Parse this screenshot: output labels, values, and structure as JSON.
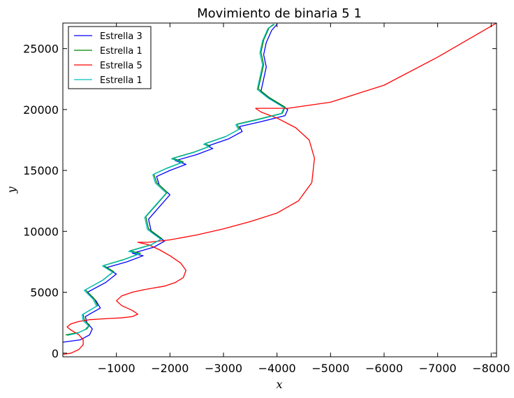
{
  "chart_data": {
    "type": "line",
    "title": "Movimiento de binaria 5 1",
    "xlabel": "x",
    "ylabel": "y",
    "xlim": [
      0,
      -8100
    ],
    "ylim": [
      -300,
      27100
    ],
    "x_ticks": [
      -1000,
      -2000,
      -3000,
      -4000,
      -5000,
      -6000,
      -7000,
      -8000
    ],
    "x_tick_labels": [
      "−1000",
      "−2000",
      "−3000",
      "−4000",
      "−5000",
      "−6000",
      "−7000",
      "−8000"
    ],
    "y_ticks": [
      0,
      5000,
      10000,
      15000,
      20000,
      25000
    ],
    "y_tick_labels": [
      "0",
      "5000",
      "10000",
      "15000",
      "20000",
      "25000"
    ],
    "legend_position": "upper-left",
    "series": [
      {
        "name": "Estrella 3",
        "color": "#0000ff",
        "x": [
          0,
          -330,
          -500,
          -550,
          -450,
          -420,
          -700,
          -620,
          -460,
          -800,
          -1000,
          -800,
          -1200,
          -1500,
          -1300,
          -1700,
          -1900,
          -1650,
          -1600,
          -1800,
          -2000,
          -1800,
          -1750,
          -2000,
          -2300,
          -2100,
          -2500,
          -2800,
          -2700,
          -3100,
          -3350,
          -3300,
          -3700,
          -4150,
          -4200,
          -3900,
          -3700,
          -3750,
          -3800,
          -3750,
          -3800,
          -3900,
          -4000
        ],
        "y": [
          900,
          1100,
          1500,
          2000,
          2500,
          3000,
          3700,
          4300,
          5000,
          5800,
          6500,
          7000,
          7500,
          8000,
          8200,
          8700,
          9200,
          10000,
          11000,
          12000,
          13000,
          13800,
          14500,
          15000,
          15500,
          15800,
          16300,
          16800,
          17000,
          17600,
          18200,
          18600,
          19000,
          19500,
          20000,
          20800,
          21500,
          22500,
          23500,
          24500,
          25500,
          26500,
          27000
        ]
      },
      {
        "name": "Estrella 1",
        "color": "#008000",
        "x": [
          -50,
          -300,
          -450,
          -500,
          -400,
          -380,
          -650,
          -580,
          -420,
          -750,
          -950,
          -760,
          -1150,
          -1450,
          -1250,
          -1650,
          -1850,
          -1600,
          -1550,
          -1750,
          -1950,
          -1750,
          -1700,
          -1950,
          -2250,
          -2050,
          -2450,
          -2750,
          -2650,
          -3050,
          -3300,
          -3250,
          -3650,
          -4100,
          -4150,
          -3850,
          -3650,
          -3700,
          -3750,
          -3700,
          -3750,
          -3850,
          -3950
        ],
        "y": [
          1500,
          1700,
          2000,
          2300,
          2700,
          3200,
          3900,
          4500,
          5200,
          6000,
          6700,
          7200,
          7700,
          8200,
          8400,
          8900,
          9400,
          10200,
          11200,
          12200,
          13200,
          14000,
          14700,
          15200,
          15700,
          16000,
          16500,
          17000,
          17200,
          17800,
          18400,
          18800,
          19200,
          19700,
          20200,
          21000,
          21700,
          22700,
          23700,
          24700,
          25700,
          26700,
          27000
        ]
      },
      {
        "name": "Estrella 5",
        "color": "#ff0000",
        "x": [
          0,
          -150,
          -300,
          -380,
          -380,
          -300,
          -150,
          -80,
          -150,
          -300,
          -500,
          -700,
          -900,
          -1100,
          -1300,
          -1400,
          -1300,
          -1100,
          -1000,
          -1100,
          -1300,
          -1500,
          -1700,
          -1900,
          -2100,
          -2250,
          -2300,
          -2200,
          -2000,
          -1800,
          -1600,
          -1400,
          -1600,
          -2000,
          -2500,
          -3000,
          -3500,
          -4000,
          -4400,
          -4650,
          -4700,
          -4600,
          -4350,
          -4000,
          -3700,
          -3600,
          -3700,
          -4200,
          -5000,
          -6000,
          -7000,
          -8100
        ],
        "y": [
          -100,
          0,
          300,
          700,
          1100,
          1500,
          1900,
          2150,
          2400,
          2600,
          2750,
          2800,
          2850,
          2900,
          3000,
          3200,
          3500,
          3900,
          4300,
          4700,
          5000,
          5200,
          5350,
          5500,
          5800,
          6200,
          6800,
          7400,
          8000,
          8500,
          8900,
          9100,
          9100,
          9300,
          9700,
          10200,
          10800,
          11500,
          12500,
          14000,
          16000,
          17500,
          18500,
          19300,
          19800,
          20100,
          20100,
          20100,
          20600,
          22000,
          24300,
          27100
        ]
      },
      {
        "name": "Estrella 1",
        "color": "#00bfbf",
        "x": [
          -80,
          -280,
          -420,
          -480,
          -380,
          -360,
          -630,
          -560,
          -400,
          -730,
          -930,
          -740,
          -1130,
          -1430,
          -1230,
          -1630,
          -1830,
          -1580,
          -1530,
          -1730,
          -1930,
          -1730,
          -1680,
          -1930,
          -2230,
          -2030,
          -2430,
          -2730,
          -2630,
          -3030,
          -3280,
          -3230,
          -3630,
          -4080,
          -4130,
          -3830,
          -3630,
          -3680,
          -3730,
          -3680,
          -3730,
          -3830,
          -3930
        ],
        "y": [
          1450,
          1650,
          1950,
          2250,
          2650,
          3150,
          3850,
          4450,
          5150,
          5950,
          6650,
          7150,
          7650,
          8150,
          8350,
          8850,
          9350,
          10150,
          11150,
          12150,
          13150,
          13950,
          14650,
          15150,
          15650,
          15950,
          16450,
          16950,
          17150,
          17750,
          18350,
          18750,
          19150,
          19650,
          20150,
          20950,
          21650,
          22650,
          23650,
          24650,
          25650,
          26650,
          27000
        ]
      }
    ]
  }
}
